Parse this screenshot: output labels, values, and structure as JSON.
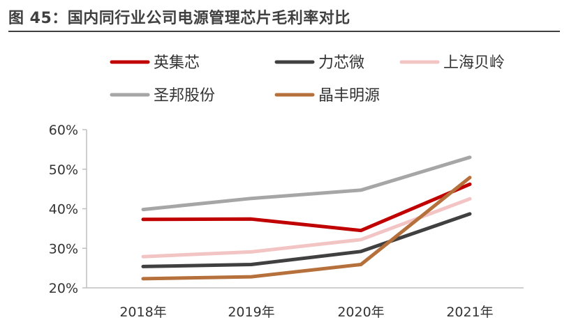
{
  "figure_title": "图 45：国内同行业公司电源管理芯片毛利率对比",
  "chart_data": {
    "type": "line",
    "title": "国内同行业公司电源管理芯片毛利率对比",
    "xlabel": "",
    "ylabel": "",
    "categories": [
      "2018年",
      "2019年",
      "2020年",
      "2021年"
    ],
    "ylim": [
      0.2,
      0.6
    ],
    "yticks": [
      0.2,
      0.3,
      0.4,
      0.5,
      0.6
    ],
    "ytick_labels": [
      "20%",
      "30%",
      "40%",
      "50%",
      "60%"
    ],
    "grid": false,
    "legend_position": "top",
    "series": [
      {
        "name": "英集芯",
        "color": "#C00000",
        "values": [
          0.373,
          0.374,
          0.345,
          0.462
        ]
      },
      {
        "name": "力芯微",
        "color": "#404040",
        "values": [
          0.254,
          0.259,
          0.292,
          0.387
        ]
      },
      {
        "name": "上海贝岭",
        "color": "#F2C4C4",
        "values": [
          0.279,
          0.291,
          0.322,
          0.425
        ]
      },
      {
        "name": "圣邦股份",
        "color": "#A6A6A6",
        "values": [
          0.398,
          0.426,
          0.447,
          0.53
        ]
      },
      {
        "name": "晶丰明源",
        "color": "#B5703C",
        "values": [
          0.223,
          0.228,
          0.259,
          0.479
        ]
      }
    ]
  }
}
